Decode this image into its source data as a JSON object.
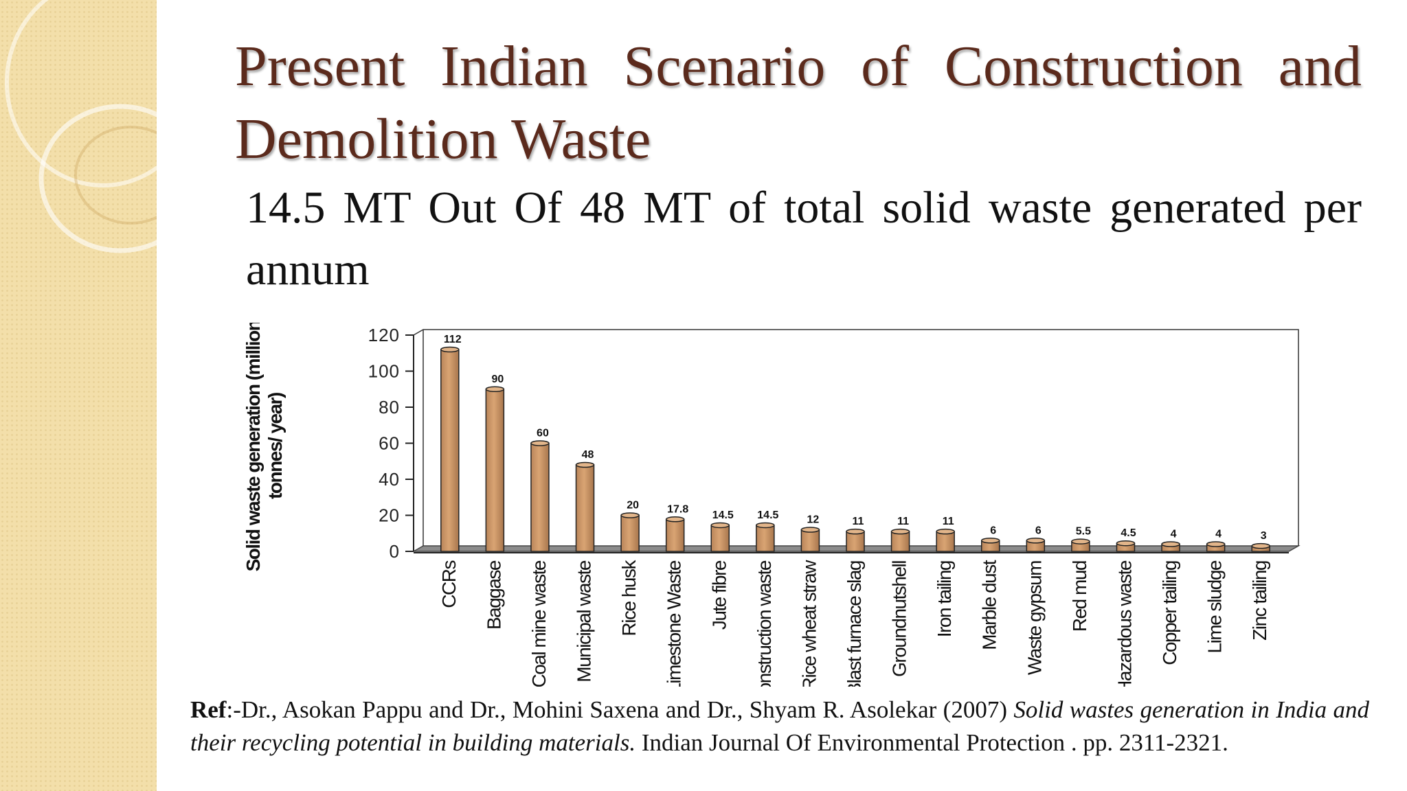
{
  "slide": {
    "title": "Present Indian Scenario of Construction and Demolition Waste",
    "subtitle": "14.5 MT Out Of 48 MT of total solid waste generated per annum",
    "colors": {
      "title": "#5b2a1c",
      "sidebar": "#f3dfaa",
      "bar": "#d9a473"
    }
  },
  "chart_data": {
    "type": "bar",
    "ylabel": "Solid waste generation (million tonnes/ year)",
    "xlabel": "",
    "ylim": [
      0,
      120
    ],
    "yticks": [
      "0",
      "20",
      "40",
      "60",
      "80",
      "100",
      "120"
    ],
    "categories": [
      "CCRs",
      "Baggase",
      "Coal mine waste",
      "Municipal waste",
      "Rice husk",
      "Limestone Waste",
      "Jute fibre",
      "Construction waste",
      "Rice wheat straw",
      "Blast furnace slag",
      "Groundnutshell",
      "Iron tailing",
      "Marble dust",
      "Waste gypsum",
      "Red mud",
      "Hazardous waste",
      "Copper tailing",
      "Lime sludge",
      "Zinc tailing"
    ],
    "values": [
      112,
      90,
      60,
      48,
      20,
      17.8,
      14.5,
      14.5,
      12,
      11,
      11,
      11,
      6,
      6,
      5.5,
      4.5,
      4,
      4,
      3
    ],
    "value_labels": [
      "112",
      "90",
      "60",
      "48",
      "20",
      "17.8",
      "14.5",
      "14.5",
      "12",
      "11",
      "11",
      "11",
      "6",
      "6",
      "5.5",
      "4.5",
      "4",
      "4",
      "3"
    ],
    "legend": "none",
    "grid": false
  },
  "reference": {
    "label": "Ref",
    "text_plain": ":-Dr., Asokan Pappu and Dr., Mohini Saxena and Dr., Shyam R. Asolekar (2007) ",
    "text_italic": "Solid wastes generation in India and their recycling potential in building materials.",
    "text_end": " Indian Journal Of Environmental Protection . pp. 2311-2321."
  }
}
